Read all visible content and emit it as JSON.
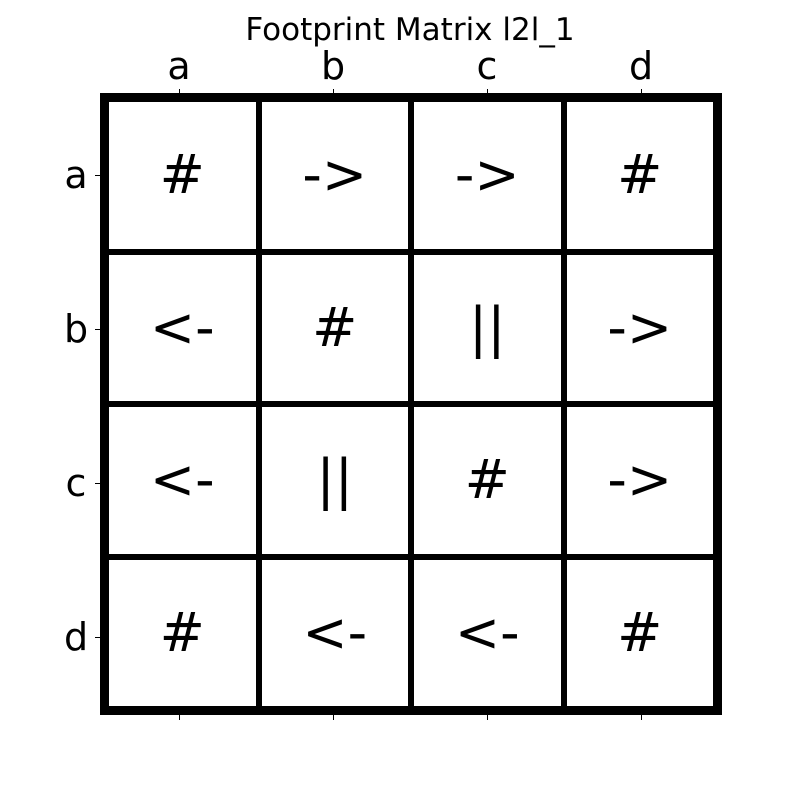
{
  "title": "Footprint Matrix l2l_1",
  "columns": [
    "a",
    "b",
    "c",
    "d"
  ],
  "rows": [
    "a",
    "b",
    "c",
    "d"
  ],
  "cells": [
    [
      "#",
      "->",
      "->",
      "#"
    ],
    [
      "<-",
      "#",
      "||",
      "->"
    ],
    [
      "<-",
      "||",
      "#",
      "->"
    ],
    [
      "#",
      "<-",
      "<-",
      "#"
    ]
  ]
}
